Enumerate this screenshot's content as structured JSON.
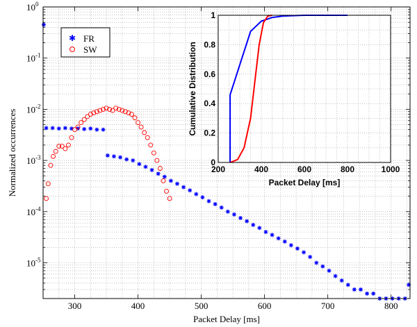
{
  "chart_data": [
    {
      "type": "scatter",
      "title": "",
      "xlabel": "Packet Delay [ms]",
      "ylabel": "Normalized occurrences",
      "xlim": [
        250,
        830
      ],
      "ylim": [
        2e-06,
        1
      ],
      "yscale": "log",
      "grid": true,
      "legend_position": "top-left",
      "xticks": [
        "300",
        "400",
        "500",
        "600",
        "700",
        "800"
      ],
      "yticks": [
        {
          "base": "10",
          "exp": "0",
          "value": 1
        },
        {
          "base": "10",
          "exp": "-1",
          "value": 0.1
        },
        {
          "base": "10",
          "exp": "-2",
          "value": 0.01
        },
        {
          "base": "10",
          "exp": "-3",
          "value": 0.001
        },
        {
          "base": "10",
          "exp": "-4",
          "value": 0.0001
        },
        {
          "base": "10",
          "exp": "-5",
          "value": 1e-05
        }
      ],
      "series": [
        {
          "name": "FR",
          "marker": "*",
          "color": "#0000ff",
          "points": [
            [
              251,
              0.45
            ],
            [
              255,
              0.0043
            ],
            [
              265,
              0.0043
            ],
            [
              275,
              0.0042
            ],
            [
              285,
              0.0043
            ],
            [
              295,
              0.0042
            ],
            [
              305,
              0.0042
            ],
            [
              315,
              0.0041
            ],
            [
              325,
              0.0042
            ],
            [
              335,
              0.004
            ],
            [
              345,
              0.004
            ],
            [
              352,
              0.00125
            ],
            [
              362,
              0.0012
            ],
            [
              372,
              0.00115
            ],
            [
              382,
              0.00105
            ],
            [
              392,
              0.001
            ],
            [
              402,
              0.00085
            ],
            [
              412,
              0.00075
            ],
            [
              422,
              0.00065
            ],
            [
              432,
              0.00055
            ],
            [
              442,
              0.00048
            ],
            [
              452,
              0.0004
            ],
            [
              462,
              0.00035
            ],
            [
              472,
              0.0003
            ],
            [
              482,
              0.00026
            ],
            [
              492,
              0.00022
            ],
            [
              502,
              0.00019
            ],
            [
              512,
              0.00016
            ],
            [
              522,
              0.00014
            ],
            [
              532,
              0.00012
            ],
            [
              542,
              0.0001
            ],
            [
              552,
              8.8e-05
            ],
            [
              562,
              7.5e-05
            ],
            [
              572,
              6.5e-05
            ],
            [
              582,
              5.5e-05
            ],
            [
              592,
              4.8e-05
            ],
            [
              602,
              4e-05
            ],
            [
              612,
              3.5e-05
            ],
            [
              622,
              3e-05
            ],
            [
              632,
              2.6e-05
            ],
            [
              642,
              2.2e-05
            ],
            [
              652,
              1.9e-05
            ],
            [
              662,
              1.6e-05
            ],
            [
              672,
              1.3e-05
            ],
            [
              682,
              1e-05
            ],
            [
              692,
              8.5e-06
            ],
            [
              702,
              7e-06
            ],
            [
              712,
              5.5e-06
            ],
            [
              722,
              4.5e-06
            ],
            [
              732,
              3.7e-06
            ],
            [
              742,
              3e-06
            ],
            [
              752,
              3e-06
            ],
            [
              762,
              2.5e-06
            ],
            [
              772,
              2.5e-06
            ],
            [
              782,
              2e-06
            ],
            [
              792,
              2e-06
            ],
            [
              802,
              2e-06
            ],
            [
              812,
              2e-06
            ],
            [
              822,
              2e-06
            ],
            [
              828,
              3.7e-06
            ]
          ]
        },
        {
          "name": "SW",
          "marker": "o",
          "color": "#ff0000",
          "points": [
            [
              255,
              0.00018
            ],
            [
              258,
              0.00035
            ],
            [
              262,
              0.0008
            ],
            [
              266,
              0.0012
            ],
            [
              270,
              0.0015
            ],
            [
              275,
              0.0019
            ],
            [
              280,
              0.0019
            ],
            [
              285,
              0.0017
            ],
            [
              290,
              0.002
            ],
            [
              295,
              0.0028
            ],
            [
              300,
              0.004
            ],
            [
              305,
              0.0045
            ],
            [
              310,
              0.0055
            ],
            [
              315,
              0.0063
            ],
            [
              320,
              0.0072
            ],
            [
              325,
              0.008
            ],
            [
              330,
              0.0085
            ],
            [
              335,
              0.009
            ],
            [
              340,
              0.0095
            ],
            [
              345,
              0.01
            ],
            [
              350,
              0.0105
            ],
            [
              355,
              0.01
            ],
            [
              360,
              0.0095
            ],
            [
              365,
              0.0105
            ],
            [
              370,
              0.01
            ],
            [
              375,
              0.0095
            ],
            [
              380,
              0.009
            ],
            [
              385,
              0.0085
            ],
            [
              390,
              0.008
            ],
            [
              395,
              0.0068
            ],
            [
              400,
              0.0055
            ],
            [
              405,
              0.0045
            ],
            [
              410,
              0.0035
            ],
            [
              415,
              0.0028
            ],
            [
              420,
              0.002
            ],
            [
              425,
              0.0014
            ],
            [
              430,
              0.001
            ],
            [
              435,
              0.0007
            ],
            [
              440,
              0.0004
            ],
            [
              445,
              0.00025
            ],
            [
              450,
              0.00018
            ]
          ]
        }
      ]
    },
    {
      "type": "line",
      "title": "",
      "xlabel": "Packet Delay [ms]",
      "ylabel": "Cumulative Distribution",
      "xlim": [
        200,
        1000
      ],
      "ylim": [
        0,
        1
      ],
      "grid": true,
      "xticks": [
        "200",
        "400",
        "600",
        "800",
        "1000"
      ],
      "yticks": [
        "0",
        "0.2",
        "0.4",
        "0.6",
        "0.8",
        "1"
      ],
      "series": [
        {
          "name": "FR",
          "color": "#0000ff",
          "x": [
            255,
            255,
            350,
            400,
            450,
            500,
            600,
            800
          ],
          "y": [
            0,
            0.46,
            0.89,
            0.96,
            0.985,
            0.995,
            1.0,
            1.0
          ]
        },
        {
          "name": "SW",
          "color": "#ff0000",
          "x": [
            255,
            290,
            320,
            350,
            370,
            390,
            410,
            430,
            450
          ],
          "y": [
            0.0,
            0.02,
            0.1,
            0.3,
            0.55,
            0.8,
            0.95,
            0.995,
            1.0
          ]
        }
      ]
    }
  ]
}
